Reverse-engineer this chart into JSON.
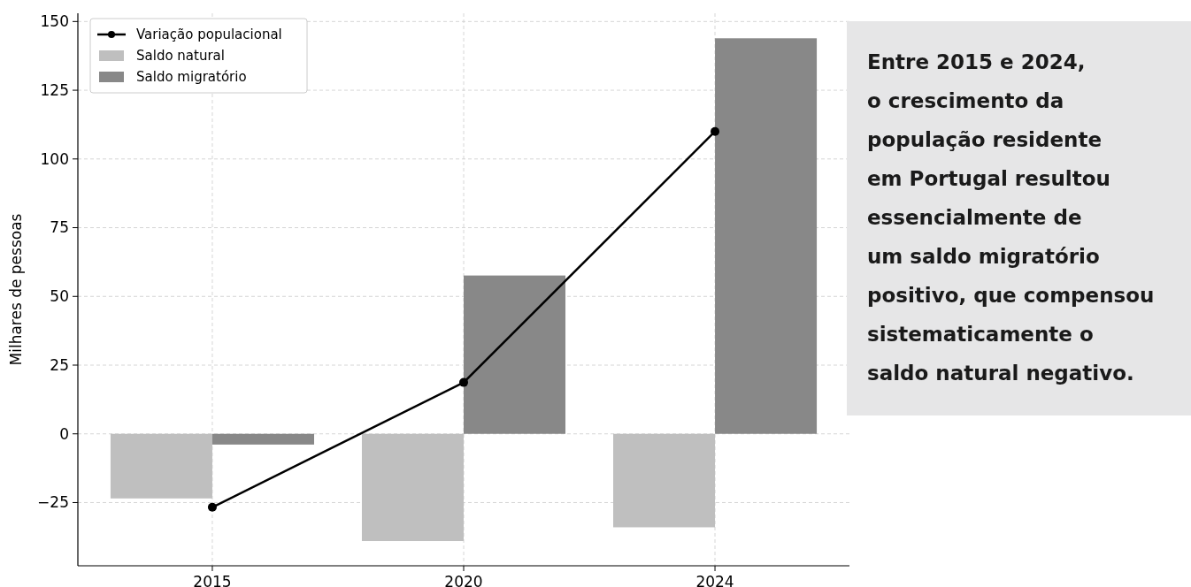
{
  "chart_data": {
    "type": "bar",
    "categories": [
      "2015",
      "2020",
      "2024"
    ],
    "ylabel": "Milhares de pessoas",
    "series": [
      {
        "name": "Variação populacional",
        "type": "line",
        "color": "#000000",
        "marker": "circle",
        "values": [
          -26.7,
          18.7,
          110
        ]
      },
      {
        "name": "Saldo natural",
        "color": "#bfbfbf",
        "values": [
          -23.5,
          -39,
          -34
        ]
      },
      {
        "name": "Saldo migratório",
        "color": "#888888",
        "values": [
          -3.9,
          57.6,
          143.9
        ]
      }
    ],
    "ylim": [
      -48,
      153
    ],
    "yticks": [
      -25,
      0,
      25,
      50,
      75,
      100,
      125,
      150
    ],
    "grid": true,
    "legend": "top left",
    "annotations": [
      "Entre 2015 e 2024,\no crescimento da\npopulação residente\nem Portugal resultou\nessencialmente de\num saldo migratório\npositivo, que compensou\nsistematicamente o\nsaldo natural negativo."
    ]
  }
}
